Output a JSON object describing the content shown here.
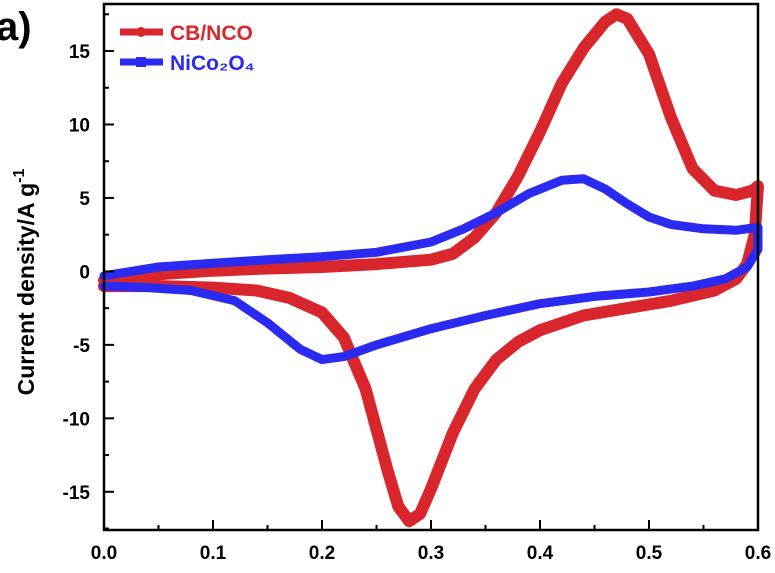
{
  "panel_label": "a)",
  "chart_data": {
    "type": "line",
    "title": "",
    "xlabel": "",
    "ylabel_main": "Current density/A g",
    "ylabel_sup": "-1",
    "xlim": [
      0.0,
      0.6
    ],
    "ylim": [
      -17.6,
      18.2
    ],
    "xticks": [
      "0.0",
      "0.1",
      "0.2",
      "0.3",
      "0.4",
      "0.5",
      "0.6"
    ],
    "yticks": [
      "15",
      "10",
      "5",
      "0",
      "-5",
      "-10",
      "-15"
    ],
    "xtick_values": [
      0.0,
      0.1,
      0.2,
      0.3,
      0.4,
      0.5,
      0.6
    ],
    "ytick_values": [
      15,
      10,
      5,
      0,
      -5,
      -10,
      -15
    ],
    "grid": false,
    "legend_position": "top-left",
    "series": [
      {
        "name": "CB/NCO",
        "color": "#d8262c",
        "points": [
          [
            0.0,
            -0.6
          ],
          [
            0.05,
            -0.2
          ],
          [
            0.1,
            0.05
          ],
          [
            0.15,
            0.2
          ],
          [
            0.2,
            0.3
          ],
          [
            0.25,
            0.5
          ],
          [
            0.3,
            0.8
          ],
          [
            0.32,
            1.2
          ],
          [
            0.34,
            2.3
          ],
          [
            0.36,
            4.0
          ],
          [
            0.38,
            6.5
          ],
          [
            0.4,
            9.5
          ],
          [
            0.42,
            12.8
          ],
          [
            0.44,
            15.2
          ],
          [
            0.46,
            17.0
          ],
          [
            0.47,
            17.5
          ],
          [
            0.48,
            17.2
          ],
          [
            0.5,
            14.8
          ],
          [
            0.52,
            10.5
          ],
          [
            0.54,
            7.0
          ],
          [
            0.56,
            5.5
          ],
          [
            0.58,
            5.2
          ],
          [
            0.595,
            5.5
          ],
          [
            0.6,
            5.8
          ],
          [
            0.597,
            2.5
          ],
          [
            0.59,
            0.5
          ],
          [
            0.58,
            -0.5
          ],
          [
            0.56,
            -1.3
          ],
          [
            0.52,
            -2.0
          ],
          [
            0.48,
            -2.5
          ],
          [
            0.44,
            -3.0
          ],
          [
            0.4,
            -4.0
          ],
          [
            0.38,
            -4.8
          ],
          [
            0.36,
            -6.0
          ],
          [
            0.34,
            -8.0
          ],
          [
            0.32,
            -11.0
          ],
          [
            0.3,
            -14.8
          ],
          [
            0.29,
            -16.5
          ],
          [
            0.28,
            -17.0
          ],
          [
            0.27,
            -16.0
          ],
          [
            0.26,
            -13.5
          ],
          [
            0.24,
            -8.0
          ],
          [
            0.22,
            -4.5
          ],
          [
            0.2,
            -2.8
          ],
          [
            0.17,
            -1.8
          ],
          [
            0.14,
            -1.3
          ],
          [
            0.1,
            -1.1
          ],
          [
            0.05,
            -1.0
          ],
          [
            0.0,
            -1.0
          ]
        ]
      },
      {
        "name": "NiCo₂O₄",
        "color": "#2a2af0",
        "points": [
          [
            0.0,
            -0.3
          ],
          [
            0.05,
            0.3
          ],
          [
            0.1,
            0.55
          ],
          [
            0.15,
            0.8
          ],
          [
            0.2,
            1.0
          ],
          [
            0.25,
            1.3
          ],
          [
            0.3,
            2.0
          ],
          [
            0.33,
            2.9
          ],
          [
            0.36,
            4.0
          ],
          [
            0.39,
            5.3
          ],
          [
            0.42,
            6.2
          ],
          [
            0.44,
            6.3
          ],
          [
            0.46,
            5.6
          ],
          [
            0.48,
            4.6
          ],
          [
            0.5,
            3.7
          ],
          [
            0.52,
            3.2
          ],
          [
            0.55,
            2.9
          ],
          [
            0.58,
            2.8
          ],
          [
            0.6,
            3.0
          ],
          [
            0.6,
            1.5
          ],
          [
            0.59,
            0.3
          ],
          [
            0.57,
            -0.5
          ],
          [
            0.54,
            -1.0
          ],
          [
            0.5,
            -1.4
          ],
          [
            0.45,
            -1.7
          ],
          [
            0.4,
            -2.2
          ],
          [
            0.35,
            -3.0
          ],
          [
            0.3,
            -3.9
          ],
          [
            0.25,
            -5.0
          ],
          [
            0.22,
            -5.8
          ],
          [
            0.2,
            -6.0
          ],
          [
            0.18,
            -5.3
          ],
          [
            0.15,
            -3.5
          ],
          [
            0.12,
            -2.0
          ],
          [
            0.08,
            -1.3
          ],
          [
            0.04,
            -1.1
          ],
          [
            0.0,
            -1.0
          ]
        ]
      }
    ]
  }
}
